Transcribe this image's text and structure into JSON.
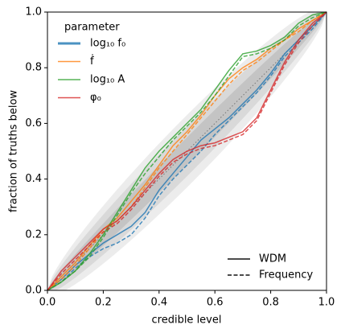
{
  "chart_data": {
    "type": "line",
    "xlabel": "credible level",
    "ylabel": "fraction of truths below",
    "legend_title": "parameter",
    "x": [
      0,
      0.05,
      0.1,
      0.15,
      0.2,
      0.25,
      0.3,
      0.35,
      0.4,
      0.45,
      0.5,
      0.55,
      0.6,
      0.65,
      0.7,
      0.75,
      0.8,
      0.85,
      0.9,
      0.95,
      1
    ],
    "linestyles": [
      {
        "name": "WDM",
        "dash": "solid"
      },
      {
        "name": "Frequency",
        "dash": "dashed"
      }
    ],
    "series": [
      {
        "name": "log₁₀ f₀",
        "color": "#1f77b4",
        "lines": [
          {
            "values": [
              0,
              0.04,
              0.09,
              0.13,
              0.17,
              0.2,
              0.23,
              0.28,
              0.36,
              0.42,
              0.48,
              0.54,
              0.58,
              0.62,
              0.67,
              0.72,
              0.78,
              0.85,
              0.9,
              0.95,
              1
            ]
          },
          {
            "values": [
              0,
              0.03,
              0.08,
              0.12,
              0.15,
              0.17,
              0.2,
              0.26,
              0.34,
              0.4,
              0.45,
              0.5,
              0.56,
              0.61,
              0.66,
              0.71,
              0.77,
              0.84,
              0.89,
              0.94,
              1
            ]
          }
        ]
      },
      {
        "name": "ḟ",
        "color": "#ff7f0e",
        "lines": [
          {
            "values": [
              0,
              0.05,
              0.1,
              0.16,
              0.22,
              0.26,
              0.32,
              0.38,
              0.45,
              0.52,
              0.57,
              0.63,
              0.7,
              0.76,
              0.8,
              0.83,
              0.87,
              0.9,
              0.94,
              0.97,
              1
            ]
          },
          {
            "values": [
              0,
              0.04,
              0.09,
              0.15,
              0.21,
              0.25,
              0.3,
              0.37,
              0.44,
              0.5,
              0.56,
              0.62,
              0.68,
              0.74,
              0.79,
              0.82,
              0.86,
              0.9,
              0.93,
              0.97,
              1
            ]
          }
        ]
      },
      {
        "name": "log₁₀ A",
        "color": "#2ca02c",
        "lines": [
          {
            "values": [
              0,
              0.03,
              0.07,
              0.13,
              0.2,
              0.28,
              0.36,
              0.44,
              0.5,
              0.55,
              0.6,
              0.65,
              0.72,
              0.79,
              0.85,
              0.86,
              0.88,
              0.91,
              0.96,
              0.99,
              1
            ]
          },
          {
            "values": [
              0,
              0.03,
              0.07,
              0.12,
              0.19,
              0.27,
              0.35,
              0.42,
              0.48,
              0.54,
              0.59,
              0.64,
              0.7,
              0.77,
              0.84,
              0.85,
              0.87,
              0.9,
              0.95,
              0.98,
              1
            ]
          }
        ]
      },
      {
        "name": "φ₀",
        "color": "#d62728",
        "lines": [
          {
            "values": [
              0,
              0.07,
              0.12,
              0.17,
              0.22,
              0.25,
              0.3,
              0.36,
              0.42,
              0.47,
              0.5,
              0.52,
              0.53,
              0.55,
              0.57,
              0.62,
              0.72,
              0.82,
              0.9,
              0.96,
              1
            ]
          },
          {
            "values": [
              0,
              0.06,
              0.11,
              0.16,
              0.21,
              0.24,
              0.29,
              0.35,
              0.41,
              0.46,
              0.49,
              0.51,
              0.52,
              0.54,
              0.56,
              0.61,
              0.71,
              0.81,
              0.89,
              0.95,
              1
            ]
          }
        ]
      }
    ],
    "xlim": [
      0,
      1
    ],
    "ylim": [
      0,
      1
    ],
    "xticks": [
      {
        "value": 0,
        "label": "0.0"
      },
      {
        "value": 0.2,
        "label": "0.2"
      },
      {
        "value": 0.4,
        "label": "0.4"
      },
      {
        "value": 0.6,
        "label": "0.6"
      },
      {
        "value": 0.8,
        "label": "0.8"
      },
      {
        "value": 1,
        "label": "1.0"
      }
    ],
    "yticks": [
      {
        "value": 0,
        "label": "0.0"
      },
      {
        "value": 0.2,
        "label": "0.2"
      },
      {
        "value": 0.4,
        "label": "0.4"
      },
      {
        "value": 0.6,
        "label": "0.6"
      },
      {
        "value": 0.8,
        "label": "0.8"
      },
      {
        "value": 1,
        "label": "1.0"
      }
    ]
  }
}
